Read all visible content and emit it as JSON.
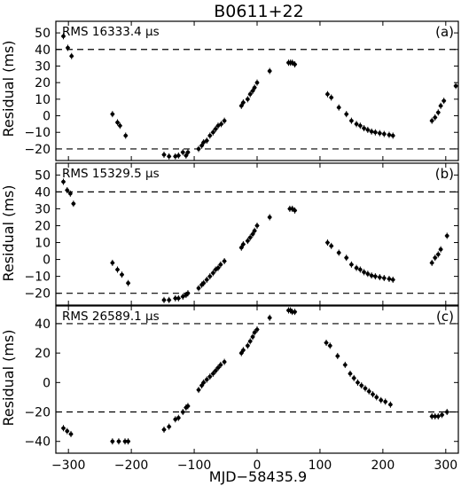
{
  "figure": {
    "title": "B0611+22",
    "xlabel": "MJD−58435.9",
    "ylabel": "Residual (ms)",
    "xlim": [
      -320,
      320
    ],
    "x_ticks": [
      -300,
      -200,
      -100,
      0,
      100,
      200,
      300
    ],
    "x_tick_labels": [
      "−300",
      "−200",
      "−100",
      "0",
      "100",
      "200",
      "300"
    ]
  },
  "chart_data": [
    {
      "type": "scatter",
      "panel": "(a)",
      "title": "B0611+22",
      "annotation": "RMS 16333.4 μs",
      "xlabel": "",
      "ylabel": "Residual (ms)",
      "xlim": [
        -320,
        320
      ],
      "ylim": [
        -27,
        57
      ],
      "yticks": [
        -20,
        -10,
        0,
        10,
        20,
        30,
        40,
        50
      ],
      "ytick_labels": [
        "−20",
        "−10",
        "0",
        "10",
        "20",
        "30",
        "40",
        "50"
      ],
      "dashed_lines": [
        40,
        -20
      ],
      "series": [
        {
          "points": [
            [
              -308,
              48
            ],
            [
              -301,
              41
            ],
            [
              -295,
              36
            ],
            [
              -230,
              1
            ],
            [
              -222,
              -4
            ],
            [
              -218,
              -6
            ],
            [
              -209,
              -12
            ],
            [
              -148,
              -23.5
            ],
            [
              -140,
              -24.5
            ],
            [
              -130,
              -24.5
            ],
            [
              -125,
              -24
            ],
            [
              -118,
              -22
            ],
            [
              -113,
              -24
            ],
            [
              -110,
              -22
            ],
            [
              -93,
              -20
            ],
            [
              -88,
              -18
            ],
            [
              -85,
              -16
            ],
            [
              -80,
              -15
            ],
            [
              -75,
              -12
            ],
            [
              -70,
              -10
            ],
            [
              -66,
              -8
            ],
            [
              -62,
              -6
            ],
            [
              -57,
              -5
            ],
            [
              -52,
              -3
            ],
            [
              -25,
              6
            ],
            [
              -22,
              8
            ],
            [
              -15,
              10
            ],
            [
              -11,
              13
            ],
            [
              -7,
              15
            ],
            [
              -4,
              17
            ],
            [
              0,
              20
            ],
            [
              20,
              27
            ],
            [
              50,
              32
            ],
            [
              53,
              32
            ],
            [
              56,
              32
            ],
            [
              60,
              31
            ],
            [
              112,
              13
            ],
            [
              118,
              11
            ],
            [
              130,
              5
            ],
            [
              142,
              1
            ],
            [
              150,
              -3
            ],
            [
              158,
              -5
            ],
            [
              164,
              -6
            ],
            [
              170,
              -7.5
            ],
            [
              176,
              -8.5
            ],
            [
              182,
              -9.5
            ],
            [
              188,
              -10
            ],
            [
              195,
              -10.5
            ],
            [
              202,
              -11
            ],
            [
              210,
              -11.5
            ],
            [
              216,
              -12
            ],
            [
              278,
              -3
            ],
            [
              283,
              -1
            ],
            [
              288,
              2
            ],
            [
              292,
              6
            ],
            [
              297,
              9
            ],
            [
              316,
              18
            ]
          ]
        }
      ]
    },
    {
      "type": "scatter",
      "panel": "(b)",
      "annotation": "RMS 15329.5 μs",
      "xlabel": "",
      "ylabel": "Residual (ms)",
      "xlim": [
        -320,
        320
      ],
      "ylim": [
        -27,
        57
      ],
      "yticks": [
        -20,
        -10,
        0,
        10,
        20,
        30,
        40,
        50
      ],
      "ytick_labels": [
        "−20",
        "−10",
        "0",
        "10",
        "20",
        "30",
        "40",
        "50"
      ],
      "dashed_lines": [
        40,
        -20
      ],
      "series": [
        {
          "points": [
            [
              -308,
              46
            ],
            [
              -302,
              41
            ],
            [
              -297,
              39
            ],
            [
              -292,
              33
            ],
            [
              -230,
              -2
            ],
            [
              -222,
              -6
            ],
            [
              -215,
              -9
            ],
            [
              -205,
              -14
            ],
            [
              -148,
              -24
            ],
            [
              -140,
              -24
            ],
            [
              -130,
              -23
            ],
            [
              -125,
              -23
            ],
            [
              -118,
              -22
            ],
            [
              -113,
              -21
            ],
            [
              -110,
              -20
            ],
            [
              -93,
              -17
            ],
            [
              -88,
              -15
            ],
            [
              -85,
              -14
            ],
            [
              -80,
              -12
            ],
            [
              -75,
              -10
            ],
            [
              -70,
              -8
            ],
            [
              -66,
              -6
            ],
            [
              -62,
              -5
            ],
            [
              -58,
              -3
            ],
            [
              -52,
              -1
            ],
            [
              -25,
              7
            ],
            [
              -22,
              9
            ],
            [
              -15,
              11
            ],
            [
              -11,
              13
            ],
            [
              -7,
              15
            ],
            [
              -4,
              17
            ],
            [
              0,
              20
            ],
            [
              20,
              25
            ],
            [
              52,
              30
            ],
            [
              56,
              30
            ],
            [
              60,
              29
            ],
            [
              112,
              10
            ],
            [
              118,
              8
            ],
            [
              130,
              4
            ],
            [
              142,
              1
            ],
            [
              150,
              -3
            ],
            [
              158,
              -5
            ],
            [
              164,
              -6
            ],
            [
              170,
              -7.5
            ],
            [
              176,
              -8.5
            ],
            [
              182,
              -9.5
            ],
            [
              188,
              -10
            ],
            [
              195,
              -10.5
            ],
            [
              202,
              -11
            ],
            [
              210,
              -11.5
            ],
            [
              216,
              -12
            ],
            [
              278,
              -2
            ],
            [
              283,
              1
            ],
            [
              288,
              3
            ],
            [
              292,
              6
            ],
            [
              302,
              14
            ]
          ]
        }
      ]
    },
    {
      "type": "scatter",
      "panel": "(c)",
      "annotation": "RMS 26589.1 μs",
      "xlabel": "MJD−58435.9",
      "ylabel": "Residual (ms)",
      "xlim": [
        -320,
        320
      ],
      "ylim": [
        -48,
        52
      ],
      "yticks": [
        -40,
        -20,
        0,
        20,
        40
      ],
      "ytick_labels": [
        "−40",
        "−20",
        "0",
        "20",
        "40"
      ],
      "dashed_lines": [
        40,
        -20
      ],
      "series": [
        {
          "points": [
            [
              -308,
              -31
            ],
            [
              -302,
              -33
            ],
            [
              -296,
              -35
            ],
            [
              -230,
              -40
            ],
            [
              -220,
              -40
            ],
            [
              -210,
              -40
            ],
            [
              -205,
              -40
            ],
            [
              -148,
              -32
            ],
            [
              -140,
              -30
            ],
            [
              -130,
              -25
            ],
            [
              -125,
              -24
            ],
            [
              -118,
              -20
            ],
            [
              -113,
              -17
            ],
            [
              -110,
              -16
            ],
            [
              -93,
              -5
            ],
            [
              -88,
              -2
            ],
            [
              -85,
              0
            ],
            [
              -80,
              2
            ],
            [
              -75,
              4
            ],
            [
              -70,
              6
            ],
            [
              -66,
              8
            ],
            [
              -62,
              10
            ],
            [
              -58,
              12
            ],
            [
              -52,
              14
            ],
            [
              -25,
              20
            ],
            [
              -22,
              22
            ],
            [
              -15,
              25
            ],
            [
              -11,
              28
            ],
            [
              -7,
              31
            ],
            [
              -4,
              34
            ],
            [
              0,
              36
            ],
            [
              20,
              44
            ],
            [
              50,
              49
            ],
            [
              53,
              49
            ],
            [
              56,
              48
            ],
            [
              60,
              48
            ],
            [
              110,
              27
            ],
            [
              116,
              25
            ],
            [
              128,
              18
            ],
            [
              140,
              12
            ],
            [
              148,
              6
            ],
            [
              154,
              3
            ],
            [
              160,
              0
            ],
            [
              166,
              -2
            ],
            [
              172,
              -4
            ],
            [
              178,
              -6
            ],
            [
              184,
              -8
            ],
            [
              190,
              -10
            ],
            [
              197,
              -12
            ],
            [
              204,
              -13
            ],
            [
              212,
              -15
            ],
            [
              278,
              -23
            ],
            [
              283,
              -23
            ],
            [
              288,
              -23
            ],
            [
              294,
              -22
            ],
            [
              302,
              -20
            ]
          ]
        }
      ]
    }
  ]
}
